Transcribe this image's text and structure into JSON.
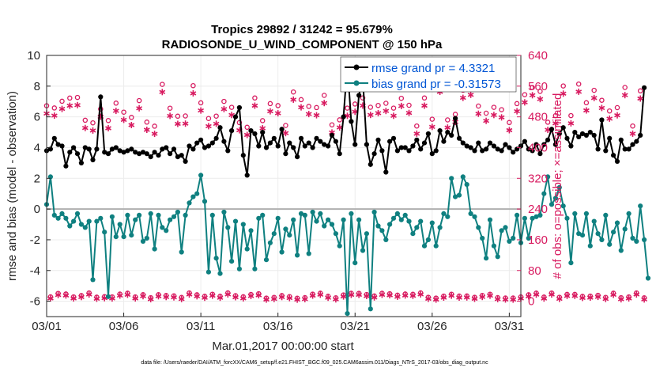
{
  "chart_data": {
    "type": "line",
    "title": "Tropics 29892 / 31242 = 95.679%",
    "subtitle": "RADIOSONDE_U_WIND_COMPONENT @ 150 hPa",
    "xlabel": "Mar.01,2017 00:00:00 start",
    "ylabel_left": "rmse and bias (model - observation)",
    "ylabel_right": "# of obs: o=possible; ×=assimilated",
    "footnote": "data file: /Users/raeder/DAI/ATM_forcXX/CAM6_setup/f.e21.FHIST_BGC.f09_025.CAM6assim.011/Diags_NTrS_2017-03/obs_diag_output.nc",
    "x_ticks": [
      {
        "label": "03/01",
        "day": 0
      },
      {
        "label": "03/06",
        "day": 5
      },
      {
        "label": "03/11",
        "day": 10
      },
      {
        "label": "03/16",
        "day": 15
      },
      {
        "label": "03/21",
        "day": 20
      },
      {
        "label": "03/26",
        "day": 25
      },
      {
        "label": "03/31",
        "day": 30
      }
    ],
    "xlim": [
      0,
      30.75
    ],
    "ylim_left": [
      -7,
      10
    ],
    "yticks_left": [
      -6,
      -4,
      -2,
      0,
      2,
      4,
      6,
      8,
      10
    ],
    "ylim_right": [
      -40,
      640
    ],
    "yticks_right": [
      0,
      80,
      160,
      240,
      320,
      400,
      480,
      560,
      640
    ],
    "legend": [
      {
        "label": "rmse grand pr = 4.3321",
        "color": "#000000"
      },
      {
        "label": "bias grand pr = -0.31573",
        "color": "#008080"
      }
    ],
    "colors": {
      "rmse": "#000000",
      "bias": "#0f8080",
      "obs": "#d81b60",
      "axis_right": "#d81b60",
      "legend_text": "#0055d4",
      "zero_line": "#b0b0b0"
    },
    "series": [
      {
        "name": "rmse",
        "x_start": 0,
        "dx": 0.25,
        "values": [
          3.8,
          3.9,
          4.6,
          4.2,
          4.1,
          2.8,
          3.7,
          4.0,
          3.6,
          3.0,
          4.0,
          3.9,
          3.2,
          3.9,
          7.3,
          3.7,
          3.6,
          3.9,
          4.0,
          3.8,
          3.7,
          3.8,
          3.9,
          3.7,
          3.6,
          3.7,
          3.6,
          3.4,
          3.7,
          3.5,
          3.9,
          4.0,
          3.6,
          3.9,
          3.4,
          3.5,
          3.1,
          4.1,
          3.9,
          4.3,
          4.5,
          4.0,
          4.1,
          4.3,
          4.6,
          5.3,
          4.4,
          3.8,
          5.1,
          6.0,
          6.6,
          3.5,
          2.2,
          5.1,
          4.9,
          4.1,
          5.0,
          4.0,
          4.3,
          4.6,
          4.1,
          5.2,
          3.6,
          4.3,
          4.0,
          3.4,
          4.6,
          4.1,
          4.3,
          4.0,
          4.6,
          4.4,
          4.2,
          4.1,
          4.8,
          4.4,
          3.6,
          6.0,
          9.4,
          5.7,
          4.2,
          7.4,
          8.5,
          4.2,
          2.9,
          3.6,
          4.5,
          3.8,
          2.4,
          4.4,
          4.6,
          3.8,
          4.0,
          4.0,
          3.8,
          4.1,
          4.5,
          3.9,
          4.3,
          4.9,
          3.6,
          3.8,
          5.1,
          4.4,
          5.0,
          4.8,
          5.9,
          4.6,
          4.3,
          4.1,
          4.0,
          3.8,
          4.3,
          3.8,
          3.9,
          4.3,
          4.1,
          3.9,
          3.8,
          4.2,
          4.0,
          3.7,
          3.9,
          4.1,
          4.4,
          3.9,
          3.8,
          4.2,
          3.6,
          4.2,
          4.5,
          5.2,
          4.2,
          4.9,
          5.3,
          4.6,
          4.1,
          5.0,
          4.7,
          4.9,
          4.8,
          5.0,
          4.8,
          3.9,
          5.8,
          3.8,
          4.6,
          3.5,
          3.1,
          4.5,
          3.9,
          3.9,
          4.2,
          4.4,
          4.8,
          7.9
        ]
      },
      {
        "name": "bias",
        "x_start": 0,
        "dx": 0.25,
        "values": [
          0.3,
          2.1,
          -0.4,
          -0.6,
          -0.3,
          -0.6,
          -1.1,
          -0.8,
          -0.3,
          -1.0,
          -1.2,
          -0.8,
          -4.6,
          -0.8,
          -0.6,
          -1.5,
          -5.7,
          -0.5,
          -1.8,
          -1.0,
          -1.8,
          -0.4,
          -1.7,
          -0.7,
          -0.4,
          -2.1,
          -1.9,
          -0.3,
          -2.6,
          -0.4,
          -1.2,
          -1.4,
          -0.7,
          -0.5,
          -0.2,
          -2.8,
          -0.4,
          0.4,
          0.8,
          1.0,
          2.2,
          0.5,
          -4.1,
          -0.4,
          -3.2,
          -4.2,
          -0.2,
          -1.2,
          -3.4,
          -0.8,
          -3.9,
          -1.0,
          -2.6,
          -1.4,
          -3.9,
          -0.6,
          -0.4,
          -3.3,
          -2.2,
          -1.6,
          -0.6,
          -2.8,
          -1.3,
          -1.7,
          -0.7,
          -3.0,
          -0.3,
          -0.4,
          -2.9,
          -0.2,
          -0.8,
          -0.3,
          -1.1,
          -0.7,
          -1.0,
          -1.6,
          -2.4,
          -0.7,
          -6.8,
          -0.3,
          -3.5,
          -0.7,
          -2.7,
          -1.6,
          -6.5,
          -0.2,
          -1.1,
          -1.4,
          -2.0,
          -1.0,
          -0.6,
          -0.3,
          -0.7,
          -0.4,
          -0.8,
          -1.6,
          -1.2,
          -0.8,
          -2.4,
          -2.0,
          -0.9,
          -2.4,
          -1.2,
          -0.3,
          -0.5,
          2.0,
          0.8,
          0.9,
          2.1,
          1.6,
          -0.3,
          -0.5,
          -1.2,
          -1.9,
          -3.2,
          -0.7,
          -2.4,
          -3.1,
          -1.4,
          -1.2,
          -2.1,
          -1.9,
          -0.4,
          -2.2,
          -0.6,
          -1.9,
          -0.6,
          -0.5,
          -0.4,
          1.0,
          2.1,
          0.3,
          0.7,
          1.4,
          0.2,
          -0.6,
          -3.5,
          -0.3,
          -1.6,
          -1.7,
          -0.3,
          -2.4,
          -0.8,
          -1.6,
          -2.0,
          -0.4,
          -2.3,
          -1.5,
          -0.9,
          -2.7,
          -1.3,
          -0.3,
          -1.9,
          -2.1,
          0.2,
          -2.0,
          -4.5
        ]
      },
      {
        "name": "obs_possible",
        "values_min": 0,
        "values_max": 575
      },
      {
        "name": "obs_assimilated",
        "values_min": 0,
        "values_max": 555
      }
    ]
  }
}
